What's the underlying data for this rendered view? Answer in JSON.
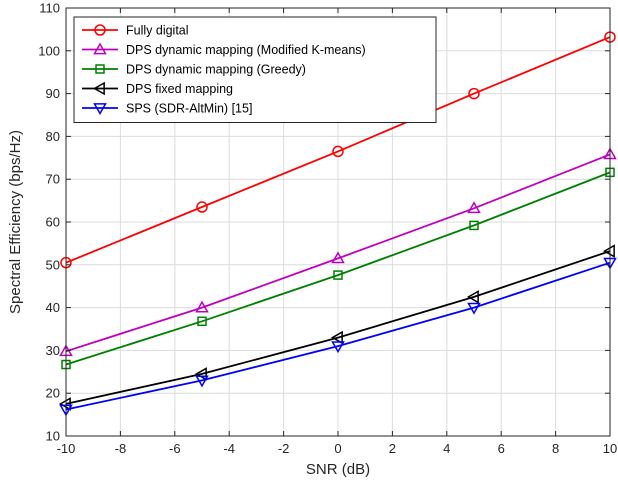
{
  "chart_data": {
    "type": "line",
    "title": "",
    "xlabel": "SNR (dB)",
    "ylabel": "Spectral Efficiency (bps/Hz)",
    "xlim": [
      -10,
      10
    ],
    "ylim": [
      10,
      110
    ],
    "xticks": [
      -10,
      -8,
      -6,
      -4,
      -2,
      0,
      2,
      4,
      6,
      8,
      10
    ],
    "yticks": [
      10,
      20,
      30,
      40,
      50,
      60,
      70,
      80,
      90,
      100,
      110
    ],
    "grid": true,
    "legend_position": "top-left",
    "x": [
      -10,
      -5,
      0,
      5,
      10
    ],
    "series": [
      {
        "name": "Fully digital",
        "color": "#ff0000",
        "marker": "circle",
        "values": [
          50.5,
          63.5,
          76.5,
          90.0,
          103.2
        ]
      },
      {
        "name": "DPS dynamic mapping (Modified K-means)",
        "color": "#bf00bf",
        "marker": "triangle-up",
        "values": [
          29.8,
          40.0,
          51.5,
          63.2,
          75.8
        ]
      },
      {
        "name": "DPS dynamic mapping (Greedy)",
        "color": "#008000",
        "marker": "square",
        "values": [
          26.7,
          36.8,
          47.6,
          59.2,
          71.6
        ]
      },
      {
        "name": "DPS fixed mapping",
        "color": "#000000",
        "marker": "triangle-left",
        "values": [
          17.5,
          24.5,
          33.0,
          42.5,
          53.2
        ]
      },
      {
        "name": "SPS (SDR-AltMin) [15]",
        "color": "#0000ff",
        "marker": "triangle-down",
        "values": [
          16.2,
          23.0,
          31.0,
          40.0,
          50.5
        ]
      }
    ]
  }
}
